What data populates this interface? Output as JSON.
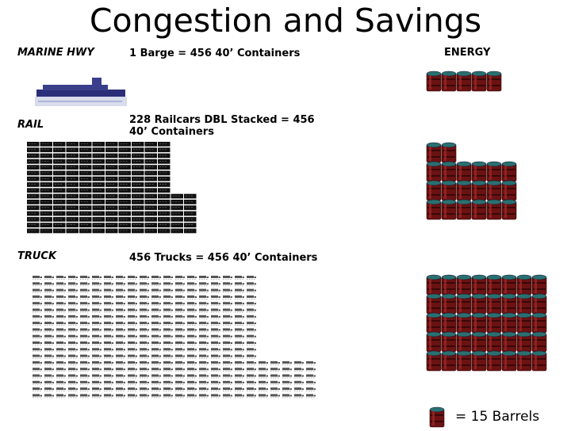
{
  "title": "Congestion and Savings",
  "modes": {
    "marine": {
      "label": "MARINE HWY",
      "description": "1 Barge = 456 40’ Containers",
      "barrels": 5
    },
    "rail": {
      "label": "RAIL",
      "description": "228 Railcars DBL Stacked = 456 40’ Containers",
      "barrels": 20
    },
    "truck": {
      "label": "TRUCK",
      "description": "456 Trucks = 456 40’ Containers",
      "barrels": 40
    }
  },
  "energy": {
    "label": "ENERGY"
  },
  "legend": {
    "text": "= 15 Barrels"
  },
  "colors": {
    "barrel_body": "#6b1212",
    "barrel_lid": "#2a7070",
    "railcar": "#111111",
    "truck": "#555555",
    "barge_hull": "#2b2e78",
    "barge_water": "#d8dcec"
  }
}
